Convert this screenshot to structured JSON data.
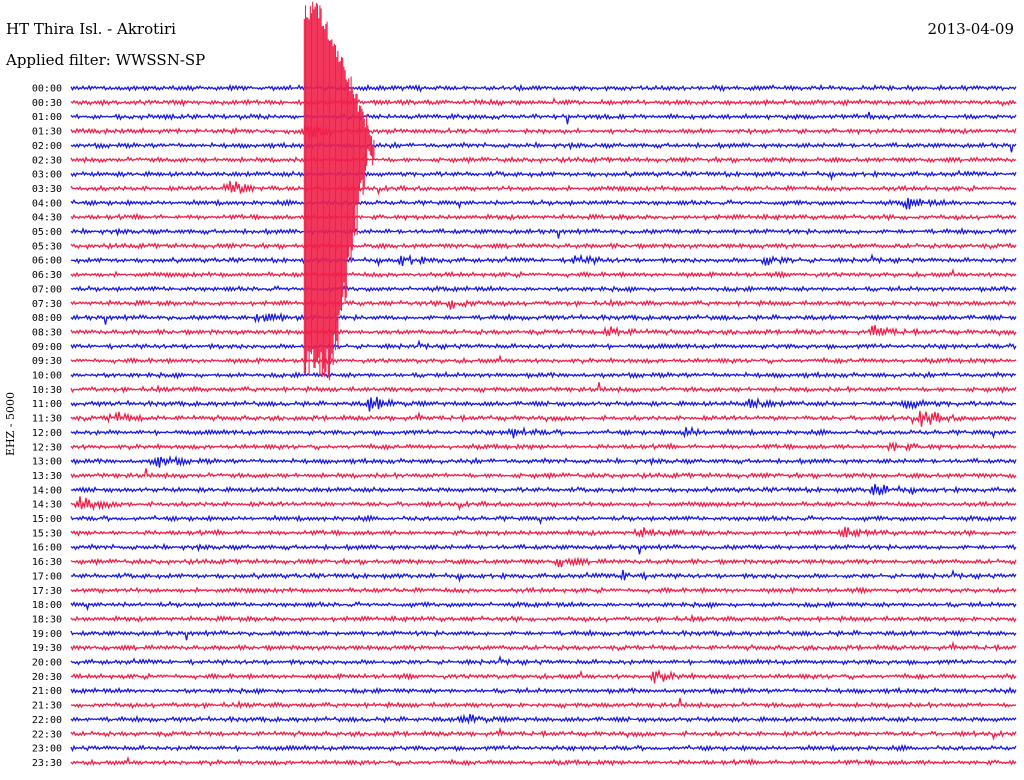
{
  "header": {
    "station": "HT Thira Isl. - Akrotiri",
    "filter": "Applied filter: WWSSN-SP",
    "date": "2013-04-09"
  },
  "channel_label": "EHZ - 5000",
  "colors": {
    "trace_a": "#1a1adf",
    "trace_b": "#f0204a"
  },
  "chart_data": {
    "type": "line",
    "row_labels": [
      "00:00",
      "00:30",
      "01:00",
      "01:30",
      "02:00",
      "02:30",
      "03:00",
      "03:30",
      "04:00",
      "04:30",
      "05:00",
      "05:30",
      "06:00",
      "06:30",
      "07:00",
      "07:30",
      "08:00",
      "08:30",
      "09:00",
      "09:30",
      "10:00",
      "10:30",
      "11:00",
      "11:30",
      "12:00",
      "12:30",
      "13:00",
      "13:30",
      "14:00",
      "14:30",
      "15:00",
      "15:30",
      "16:00",
      "16:30",
      "17:00",
      "17:30",
      "18:00",
      "18:30",
      "19:00",
      "19:30",
      "20:00",
      "20:30",
      "21:00",
      "21:30",
      "22:00",
      "22:30",
      "23:00",
      "23:30"
    ],
    "minutes_per_row": 30,
    "events": [
      {
        "row": 3,
        "minute": 7.5,
        "amp": 0.9
      },
      {
        "row": 7,
        "minute": 5,
        "amp": 1.0
      },
      {
        "row": 8,
        "minute": 26.5,
        "amp": 0.6
      },
      {
        "row": 12,
        "minute": 10.5,
        "amp": 0.6
      },
      {
        "row": 12,
        "minute": 16,
        "amp": 0.6
      },
      {
        "row": 12,
        "minute": 22,
        "amp": 0.5
      },
      {
        "row": 15,
        "minute": 12,
        "amp": 0.6
      },
      {
        "row": 16,
        "minute": 6,
        "amp": 0.9
      },
      {
        "row": 17,
        "minute": 17,
        "amp": 0.6
      },
      {
        "row": 17,
        "minute": 25.5,
        "amp": 0.6
      },
      {
        "row": 22,
        "minute": 9.5,
        "amp": 0.8
      },
      {
        "row": 22,
        "minute": 21.5,
        "amp": 0.6
      },
      {
        "row": 22,
        "minute": 26.5,
        "amp": 0.6
      },
      {
        "row": 23,
        "minute": 1.3,
        "amp": 0.7
      },
      {
        "row": 23,
        "minute": 27,
        "amp": 1.0
      },
      {
        "row": 24,
        "minute": 14,
        "amp": 0.5
      },
      {
        "row": 24,
        "minute": 19.5,
        "amp": 0.5
      },
      {
        "row": 25,
        "minute": 26,
        "amp": 0.5
      },
      {
        "row": 26,
        "minute": 2.7,
        "amp": 0.8
      },
      {
        "row": 28,
        "minute": 25.5,
        "amp": 0.7
      },
      {
        "row": 29,
        "minute": 0.3,
        "amp": 0.8
      },
      {
        "row": 31,
        "minute": 18,
        "amp": 0.5
      },
      {
        "row": 31,
        "minute": 24.5,
        "amp": 0.5
      },
      {
        "row": 33,
        "minute": 15.5,
        "amp": 0.5
      },
      {
        "row": 34,
        "minute": 17.5,
        "amp": 0.5
      },
      {
        "row": 41,
        "minute": 18.5,
        "amp": 0.6
      },
      {
        "row": 44,
        "minute": 12.5,
        "amp": 0.6
      }
    ],
    "large_event": {
      "start_row": 0,
      "end_row": 20,
      "minute": 7.4,
      "duration_minutes": 1.6
    }
  }
}
